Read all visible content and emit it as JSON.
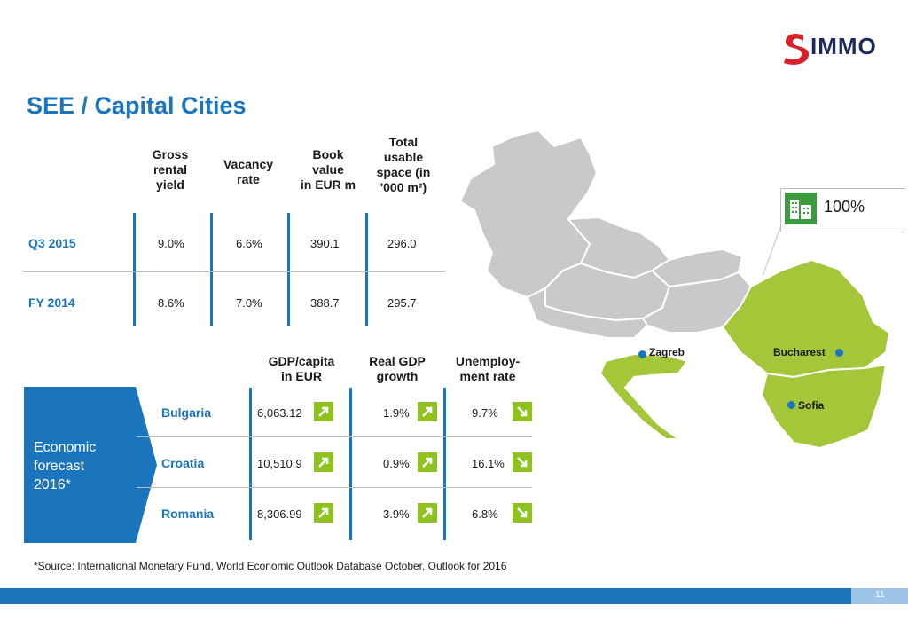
{
  "brand": {
    "logo_text": "IMMO",
    "logo_color": "#d7202a"
  },
  "title": "SEE / Capital Cities",
  "table1": {
    "headers": [
      "Gross rental yield",
      "Vacancy rate",
      "Book value in EUR m",
      "Total usable space (in '000 m²)"
    ],
    "header_lines": [
      [
        "Gross",
        "rental",
        "yield"
      ],
      [
        "Vacancy",
        "rate"
      ],
      [
        "Book",
        "value",
        "in EUR m"
      ],
      [
        "Total",
        "usable",
        "space (in",
        "'000 m²)"
      ]
    ],
    "rows": [
      {
        "label": "Q3 2015",
        "values": [
          "9.0%",
          "6.6%",
          "390.1",
          "296.0"
        ]
      },
      {
        "label": "FY 2014",
        "values": [
          "8.6%",
          "7.0%",
          "388.7",
          "295.7"
        ]
      }
    ]
  },
  "table2": {
    "header_lines": [
      [
        "GDP/capita",
        "in EUR"
      ],
      [
        "Real GDP",
        "growth"
      ],
      [
        "Unemploy-",
        "ment rate"
      ]
    ],
    "box_label": "Economic\nforecast\n2016*",
    "rows": [
      {
        "country": "Bulgaria",
        "gdp": "6,063.12",
        "gdp_dir": "up",
        "growth": "1.9%",
        "growth_dir": "up",
        "unemp": "9.7%",
        "unemp_dir": "down"
      },
      {
        "country": "Croatia",
        "gdp": "10,510.9",
        "gdp_dir": "up",
        "growth": "0.9%",
        "growth_dir": "up",
        "unemp": "16.1%",
        "unemp_dir": "down"
      },
      {
        "country": "Romania",
        "gdp": "8,306.99",
        "gdp_dir": "up",
        "growth": "3.9%",
        "growth_dir": "up",
        "unemp": "6.8%",
        "unemp_dir": "down"
      }
    ]
  },
  "map": {
    "cities": [
      "Zagreb",
      "Bucharest",
      "Sofia"
    ],
    "callout": "100%",
    "colors": {
      "highlight": "#a4c639",
      "other": "#c8c9cb",
      "accent": "#1b75bc"
    }
  },
  "footnote": "*Source: International Monetary Fund, World Economic Outlook Database October, Outlook for 2016",
  "page_number": "11"
}
